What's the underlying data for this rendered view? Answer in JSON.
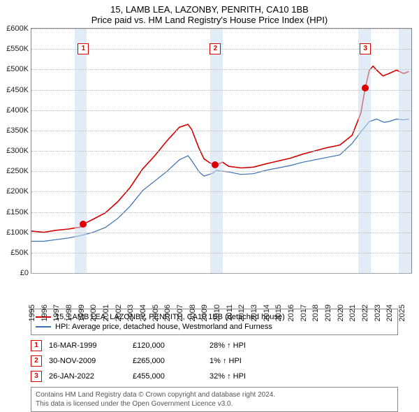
{
  "title_line1": "15, LAMB LEA, LAZONBY, PENRITH, CA10 1BB",
  "title_line2": "Price paid vs. HM Land Registry's House Price Index (HPI)",
  "chart": {
    "type": "line",
    "background_color": "#ffffff",
    "grid_color": "#bbbbbb",
    "border_color": "#888888",
    "xlim": [
      1995,
      2025.8
    ],
    "ylim": [
      0,
      600
    ],
    "y_unit_suffix": "K",
    "y_currency": "£",
    "yticks": [
      0,
      50,
      100,
      150,
      200,
      250,
      300,
      350,
      400,
      450,
      500,
      550,
      600
    ],
    "xticks": [
      1995,
      1996,
      1997,
      1998,
      1999,
      2000,
      2001,
      2002,
      2003,
      2004,
      2005,
      2006,
      2007,
      2008,
      2009,
      2010,
      2011,
      2012,
      2013,
      2014,
      2015,
      2016,
      2017,
      2018,
      2019,
      2020,
      2021,
      2022,
      2023,
      2024,
      2025
    ],
    "bands": [
      {
        "from": 1998.5,
        "to": 1999.5,
        "color": "rgba(200,220,240,0.55)"
      },
      {
        "from": 2009.5,
        "to": 2010.5,
        "color": "rgba(200,220,240,0.55)"
      },
      {
        "from": 2021.5,
        "to": 2022.5,
        "color": "rgba(200,220,240,0.55)"
      },
      {
        "from": 2024.8,
        "to": 2025.8,
        "color": "rgba(200,220,240,0.55)"
      }
    ],
    "series": [
      {
        "name": "price_paid",
        "label": "15, LAMB LEA, LAZONBY, PENRITH, CA10 1BB (detached house)",
        "color": "#d00000",
        "line_width": 1.6,
        "points": [
          [
            1995,
            103
          ],
          [
            1996,
            100
          ],
          [
            1997,
            105
          ],
          [
            1998,
            108
          ],
          [
            1999,
            113
          ],
          [
            1999.2,
            120
          ],
          [
            2000,
            132
          ],
          [
            2001,
            148
          ],
          [
            2002,
            175
          ],
          [
            2003,
            210
          ],
          [
            2004,
            255
          ],
          [
            2005,
            288
          ],
          [
            2006,
            325
          ],
          [
            2007,
            358
          ],
          [
            2007.7,
            365
          ],
          [
            2008,
            352
          ],
          [
            2008.6,
            305
          ],
          [
            2009,
            280
          ],
          [
            2009.5,
            270
          ],
          [
            2009.91,
            265
          ],
          [
            2010.5,
            272
          ],
          [
            2011,
            262
          ],
          [
            2012,
            258
          ],
          [
            2013,
            260
          ],
          [
            2014,
            268
          ],
          [
            2015,
            275
          ],
          [
            2016,
            282
          ],
          [
            2017,
            292
          ],
          [
            2018,
            300
          ],
          [
            2019,
            308
          ],
          [
            2020,
            314
          ],
          [
            2021,
            338
          ],
          [
            2021.7,
            392
          ],
          [
            2022.07,
            455
          ],
          [
            2022.4,
            498
          ],
          [
            2022.7,
            508
          ],
          [
            2023,
            498
          ],
          [
            2023.5,
            484
          ],
          [
            2024,
            490
          ],
          [
            2024.6,
            498
          ],
          [
            2025.2,
            490
          ],
          [
            2025.6,
            495
          ]
        ]
      },
      {
        "name": "hpi",
        "label": "HPI: Average price, detached house, Westmorland and Furness",
        "color": "#3a6fb0",
        "line_width": 1.2,
        "points": [
          [
            1995,
            78
          ],
          [
            1996,
            78
          ],
          [
            1997,
            82
          ],
          [
            1998,
            86
          ],
          [
            1999,
            92
          ],
          [
            2000,
            100
          ],
          [
            2001,
            112
          ],
          [
            2002,
            134
          ],
          [
            2003,
            164
          ],
          [
            2004,
            202
          ],
          [
            2005,
            226
          ],
          [
            2006,
            250
          ],
          [
            2007,
            278
          ],
          [
            2007.7,
            288
          ],
          [
            2008,
            276
          ],
          [
            2008.6,
            248
          ],
          [
            2009,
            238
          ],
          [
            2009.7,
            245
          ],
          [
            2010,
            252
          ],
          [
            2011,
            248
          ],
          [
            2012,
            242
          ],
          [
            2013,
            244
          ],
          [
            2014,
            252
          ],
          [
            2015,
            258
          ],
          [
            2016,
            264
          ],
          [
            2017,
            272
          ],
          [
            2018,
            278
          ],
          [
            2019,
            284
          ],
          [
            2020,
            290
          ],
          [
            2021,
            318
          ],
          [
            2021.8,
            350
          ],
          [
            2022.4,
            372
          ],
          [
            2023,
            378
          ],
          [
            2023.6,
            370
          ],
          [
            2024,
            372
          ],
          [
            2024.6,
            378
          ],
          [
            2025.2,
            376
          ],
          [
            2025.6,
            378
          ]
        ]
      }
    ],
    "sale_markers": [
      {
        "num": "1",
        "x": 1999.21,
        "y": 120,
        "box_y": 550
      },
      {
        "num": "2",
        "x": 2009.91,
        "y": 265,
        "box_y": 550
      },
      {
        "num": "3",
        "x": 2022.07,
        "y": 455,
        "box_y": 550
      }
    ]
  },
  "legend_items": [
    {
      "color": "#d00000",
      "label": "15, LAMB LEA, LAZONBY, PENRITH, CA10 1BB (detached house)"
    },
    {
      "color": "#3a6fb0",
      "label": "HPI: Average price, detached house, Westmorland and Furness"
    }
  ],
  "sales": [
    {
      "num": "1",
      "date": "16-MAR-1999",
      "price": "£120,000",
      "delta": "28% ↑ HPI"
    },
    {
      "num": "2",
      "date": "30-NOV-2009",
      "price": "£265,000",
      "delta": "1% ↑ HPI"
    },
    {
      "num": "3",
      "date": "26-JAN-2022",
      "price": "£455,000",
      "delta": "32% ↑ HPI"
    }
  ],
  "footer_line1": "Contains HM Land Registry data © Crown copyright and database right 2024.",
  "footer_line2": "This data is licensed under the Open Government Licence v3.0."
}
